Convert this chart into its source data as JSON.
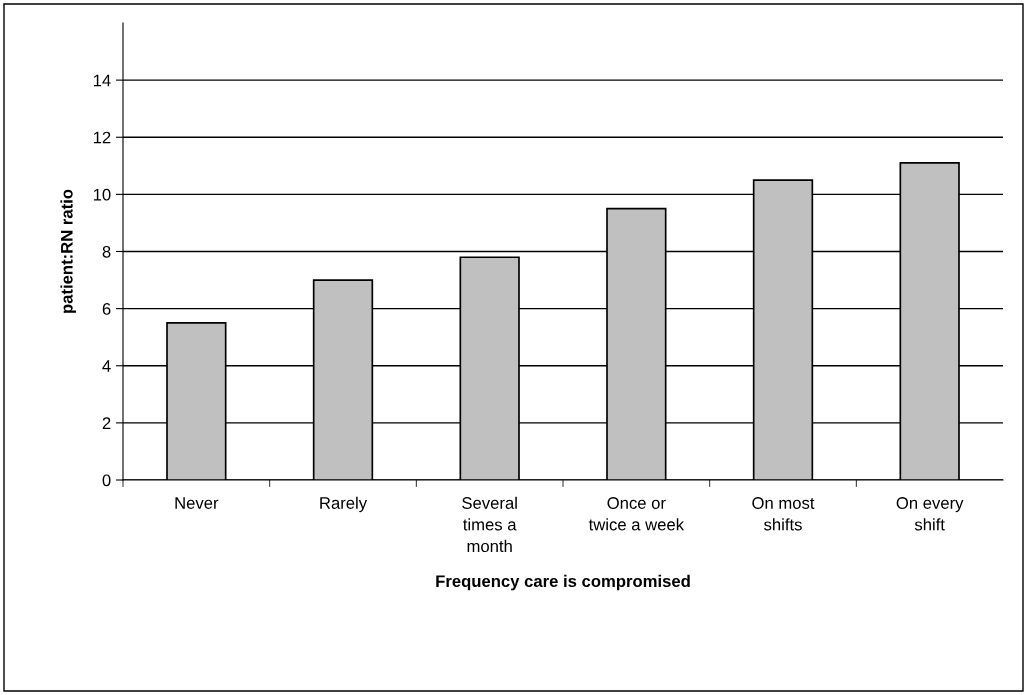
{
  "chart_data": {
    "type": "bar",
    "xlabel": "Frequency care is compromised",
    "ylabel": "patient:RN ratio",
    "categories": [
      "Never",
      "Rarely",
      "Several\ntimes a\nmonth",
      "Once or\ntwice a week",
      "On most\nshifts",
      "On every\nshift"
    ],
    "values": [
      5.5,
      7.0,
      7.8,
      9.5,
      10.5,
      11.1
    ],
    "color": "#c0c0c0",
    "ylim": [
      0,
      16
    ],
    "yticks": [
      0,
      2,
      4,
      6,
      8,
      10,
      12,
      14
    ],
    "grid": "y"
  }
}
